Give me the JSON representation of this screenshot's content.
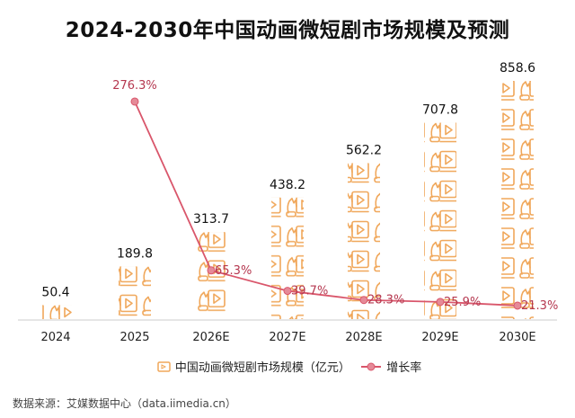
{
  "chart_data": {
    "type": "bar",
    "title": "2024-2030年中国动画微短剧市场规模及预测",
    "categories": [
      "2024",
      "2025",
      "2026E",
      "2027E",
      "2028E",
      "2029E",
      "2030E"
    ],
    "series": [
      {
        "name": "中国动画微短剧市场规模（亿元）",
        "type": "bar",
        "values": [
          50.4,
          189.8,
          313.7,
          438.2,
          562.2,
          707.8,
          858.6
        ],
        "labels": [
          "50.4",
          "189.8",
          "313.7",
          "438.2",
          "562.2",
          "707.8",
          "858.6"
        ]
      },
      {
        "name": "增长率",
        "type": "line",
        "values": [
          null,
          276.3,
          65.3,
          39.7,
          28.3,
          25.9,
          21.3
        ],
        "labels": [
          "",
          "276.3%",
          "65.3%",
          "39.7%",
          "28.3%",
          "25.9%",
          "21.3%"
        ]
      }
    ],
    "xlabel": "",
    "ylabel": "",
    "ylim": [
      0,
      858.6
    ],
    "grid": false,
    "legend_position": "bottom"
  },
  "source": "数据来源：艾媒数据中心（data.iimedia.cn）",
  "colors": {
    "bar": "#f0a75a",
    "line": "#d9566b",
    "label_rate": "#b5374f"
  }
}
